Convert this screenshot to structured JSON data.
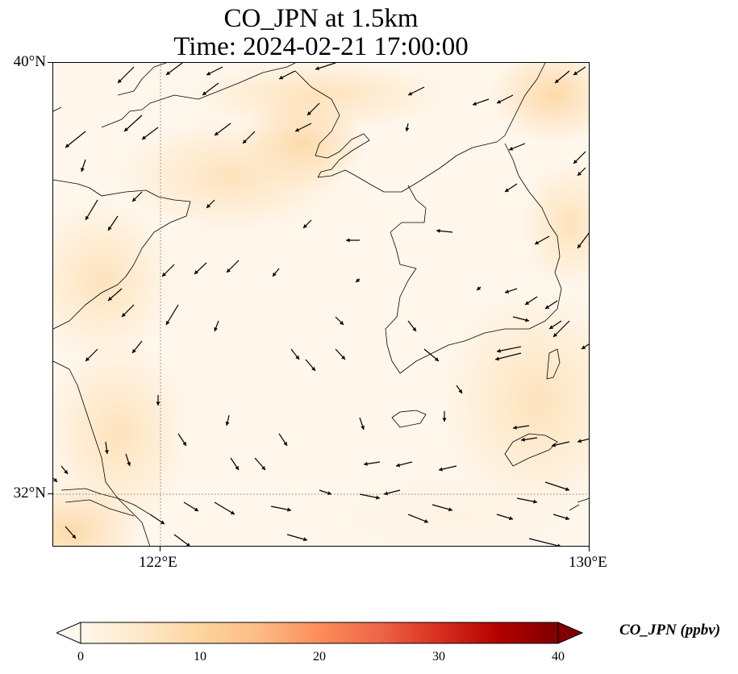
{
  "title": {
    "line1": "CO_JPN at 1.5km",
    "line2": "Time: 2024-02-21 17:00:00"
  },
  "map": {
    "extent": {
      "lon_min": 120,
      "lon_max": 130,
      "lat_min": 31,
      "lat_max": 40
    },
    "lat_labels": [
      {
        "value": 40,
        "label": "40°N"
      },
      {
        "value": 32,
        "label": "32°N"
      }
    ],
    "lon_labels": [
      {
        "value": 122,
        "label": "122°E"
      },
      {
        "value": 130,
        "label": "130°E"
      }
    ],
    "gridlines": {
      "lons": [
        122
      ],
      "lats": [
        32
      ],
      "style": "dotted",
      "color": "#8a7a6a"
    },
    "field": "CO_JPN",
    "field_description": "mostly low CO (0–5 ppbv) with light-orange patches (~5–9 ppbv) over the northern Bohai/Liaodong area, the northeast corner and far southwest",
    "wind_arrows_shown": true
  },
  "colorbar": {
    "label": "CO_JPN (ppbv)",
    "min": 0,
    "max": 40,
    "ticks": [
      "0",
      "10",
      "20",
      "30",
      "40"
    ],
    "colormap": [
      "#fff7ec",
      "#fee8c8",
      "#fdd49e",
      "#fdbb84",
      "#fc8d59",
      "#ef6548",
      "#d7301f",
      "#b30000",
      "#7f0000"
    ],
    "extend": "both"
  }
}
